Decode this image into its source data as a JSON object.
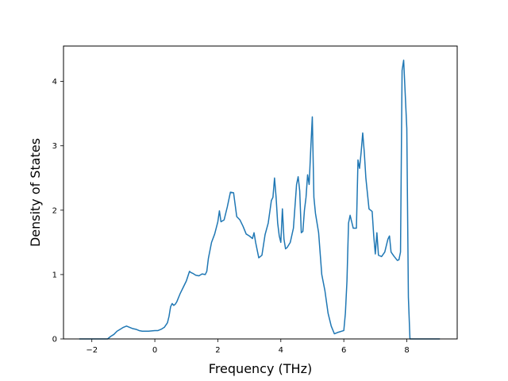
{
  "chart_data": {
    "type": "line",
    "title": "",
    "xlabel": "Frequency (THz)",
    "ylabel": "Density of States",
    "xlim": [
      -2.9,
      9.6
    ],
    "ylim": [
      0,
      4.55
    ],
    "xticks": [
      -2,
      0,
      2,
      4,
      6,
      8
    ],
    "yticks": [
      0,
      1,
      2,
      3,
      4
    ],
    "grid": false,
    "series": [
      {
        "color": "#1f77b4",
        "x": [
          -2.4,
          -1.5,
          -1.4,
          -1.3,
          -1.2,
          -1.1,
          -1.0,
          -0.9,
          -0.8,
          -0.7,
          -0.6,
          -0.5,
          -0.4,
          -0.2,
          0.0,
          0.1,
          0.2,
          0.3,
          0.4,
          0.45,
          0.5,
          0.55,
          0.6,
          0.65,
          0.7,
          0.8,
          0.9,
          1.0,
          1.1,
          1.15,
          1.2,
          1.3,
          1.4,
          1.5,
          1.6,
          1.65,
          1.7,
          1.8,
          1.9,
          2.0,
          2.05,
          2.1,
          2.2,
          2.3,
          2.4,
          2.5,
          2.6,
          2.7,
          2.8,
          2.9,
          3.0,
          3.1,
          3.15,
          3.2,
          3.3,
          3.4,
          3.5,
          3.6,
          3.7,
          3.75,
          3.8,
          3.85,
          3.9,
          3.95,
          4.0,
          4.05,
          4.1,
          4.15,
          4.2,
          4.3,
          4.4,
          4.5,
          4.55,
          4.6,
          4.65,
          4.7,
          4.75,
          4.8,
          4.85,
          4.9,
          4.95,
          5.0,
          5.05,
          5.1,
          5.2,
          5.3,
          5.4,
          5.5,
          5.55,
          5.6,
          5.7,
          5.8,
          6.0,
          6.05,
          6.1,
          6.15,
          6.2,
          6.3,
          6.4,
          6.45,
          6.5,
          6.55,
          6.6,
          6.65,
          6.7,
          6.8,
          6.9,
          6.95,
          7.0,
          7.05,
          7.1,
          7.2,
          7.3,
          7.4,
          7.45,
          7.5,
          7.6,
          7.7,
          7.75,
          7.8,
          7.85,
          7.9,
          8.0,
          8.05,
          8.1,
          8.15,
          9.05
        ],
        "y": [
          0.0,
          0.0,
          0.04,
          0.07,
          0.12,
          0.15,
          0.18,
          0.2,
          0.18,
          0.16,
          0.15,
          0.13,
          0.12,
          0.12,
          0.13,
          0.13,
          0.15,
          0.18,
          0.25,
          0.35,
          0.5,
          0.55,
          0.52,
          0.54,
          0.58,
          0.7,
          0.8,
          0.9,
          1.05,
          1.03,
          1.02,
          0.99,
          0.98,
          1.01,
          1.0,
          1.05,
          1.25,
          1.5,
          1.63,
          1.82,
          1.99,
          1.82,
          1.85,
          2.05,
          2.28,
          2.27,
          1.9,
          1.85,
          1.75,
          1.63,
          1.6,
          1.56,
          1.65,
          1.5,
          1.26,
          1.3,
          1.62,
          1.8,
          2.15,
          2.2,
          2.5,
          2.2,
          1.8,
          1.6,
          1.5,
          2.02,
          1.55,
          1.4,
          1.42,
          1.5,
          1.72,
          2.4,
          2.52,
          2.3,
          1.65,
          1.67,
          2.0,
          2.2,
          2.55,
          2.4,
          2.95,
          3.45,
          2.2,
          1.95,
          1.65,
          1.0,
          0.75,
          0.4,
          0.3,
          0.2,
          0.08,
          0.1,
          0.13,
          0.4,
          0.9,
          1.8,
          1.92,
          1.72,
          1.72,
          2.78,
          2.65,
          2.9,
          3.2,
          2.9,
          2.5,
          2.02,
          1.98,
          1.6,
          1.32,
          1.65,
          1.3,
          1.28,
          1.35,
          1.55,
          1.6,
          1.35,
          1.28,
          1.22,
          1.23,
          1.35,
          4.17,
          4.33,
          3.27,
          0.65,
          0.0,
          0.0,
          0.0
        ]
      }
    ]
  }
}
